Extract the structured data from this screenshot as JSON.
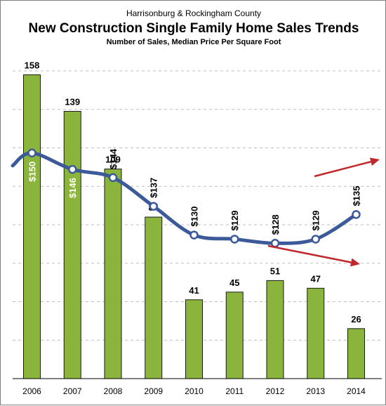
{
  "chart_data": {
    "type": "bar",
    "title": "New Construction Single Family Home Sales Trends",
    "subtitle": "Harrisonburg & Rockingham County",
    "caption": "Number of Sales, Median Price Per Square Foot",
    "categories": [
      "2006",
      "2007",
      "2008",
      "2009",
      "2010",
      "2011",
      "2012",
      "2013",
      "2014"
    ],
    "series": [
      {
        "name": "Number of Sales",
        "type": "bar",
        "values": [
          158,
          139,
          109,
          84,
          41,
          45,
          51,
          47,
          26
        ],
        "labels": [
          "158",
          "139",
          "109",
          "84",
          "41",
          "45",
          "51",
          "47",
          "26"
        ],
        "color": "#8ab43c"
      },
      {
        "name": "Median Price Per Square Foot",
        "type": "line",
        "values": [
          150,
          146,
          144,
          137,
          130,
          129,
          128,
          129,
          135
        ],
        "labels": [
          "$150",
          "$146",
          "$144",
          "$137",
          "$130",
          "$129",
          "$128",
          "$129",
          "$135"
        ],
        "color": "#3c5a9a"
      }
    ],
    "ylim_sales": [
      0,
      160
    ],
    "ylim_price_display": [
      95,
      170
    ],
    "grid": true,
    "trend_arrow_color": "#c0282c"
  }
}
